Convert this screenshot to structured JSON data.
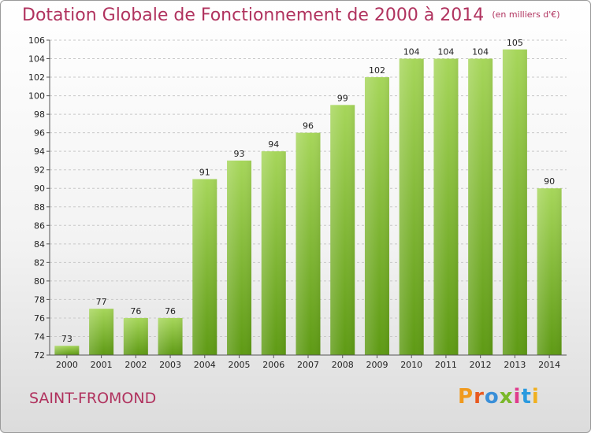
{
  "chart_data": {
    "type": "bar",
    "title": "Dotation Globale de Fonctionnement de 2000 à 2014",
    "subtitle": "(en milliers d'€)",
    "categories": [
      "2000",
      "2001",
      "2002",
      "2003",
      "2004",
      "2005",
      "2006",
      "2007",
      "2008",
      "2009",
      "2010",
      "2011",
      "2012",
      "2013",
      "2014"
    ],
    "values": [
      73,
      77,
      76,
      76,
      91,
      93,
      94,
      96,
      99,
      102,
      104,
      104,
      104,
      105,
      90
    ],
    "ylim": [
      72,
      106
    ],
    "yticks": [
      72,
      74,
      76,
      78,
      80,
      82,
      84,
      86,
      88,
      90,
      92,
      94,
      96,
      98,
      100,
      102,
      104,
      106
    ],
    "grid": true,
    "bar_color": "#7db832"
  },
  "commune": "SAINT-FROMOND",
  "logo": {
    "letters": [
      "P",
      "r",
      "o",
      "x",
      "i",
      "t",
      "i"
    ],
    "colors": [
      "#f09a1e",
      "#e85a20",
      "#3a8fd8",
      "#7ab82a",
      "#e03c8c",
      "#2a9adf",
      "#f0b020"
    ]
  }
}
